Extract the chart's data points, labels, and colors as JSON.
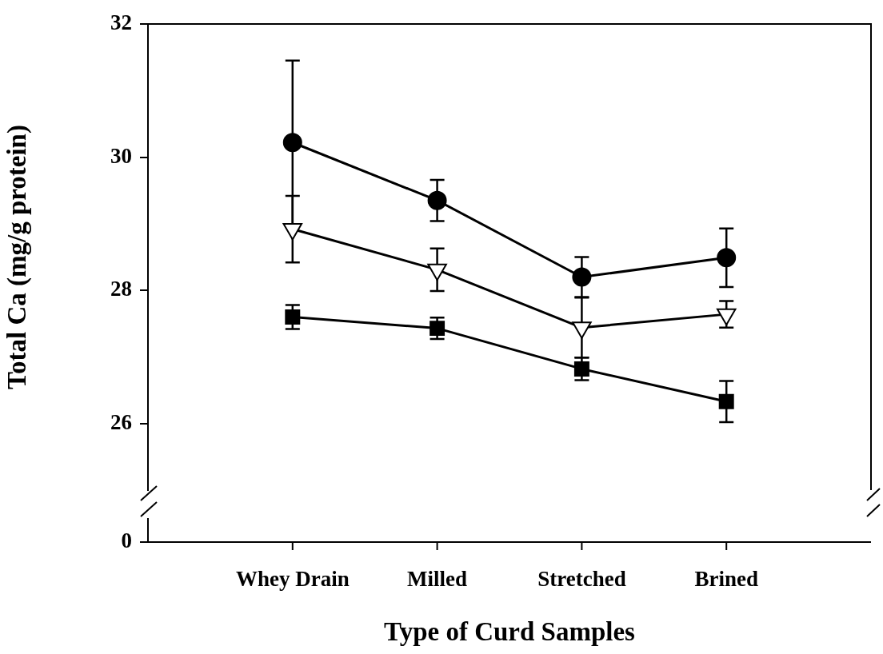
{
  "chart_data": {
    "type": "line",
    "xlabel": "Type of Curd Samples",
    "ylabel": "Total Ca (mg/g protein)",
    "categories": [
      "Whey Drain",
      "Milled",
      "Stretched",
      "Brined"
    ],
    "ylim": [
      25,
      32
    ],
    "yticks": [
      26,
      28,
      30,
      32
    ],
    "grid": false,
    "legend": false,
    "line_style": "solid",
    "annotations": [
      "0"
    ],
    "series": [
      {
        "color": "#000000",
        "marker": "circle",
        "values": [
          30.22,
          29.35,
          28.2,
          28.49
        ],
        "errors": [
          1.23,
          0.31,
          0.3,
          0.44
        ]
      },
      {
        "color": "#000000",
        "marker": "triangle",
        "values": [
          28.92,
          28.31,
          27.44,
          27.64
        ],
        "errors": [
          0.5,
          0.32,
          0.45,
          0.2
        ]
      },
      {
        "color": "#000000",
        "marker": "square",
        "values": [
          27.6,
          27.43,
          26.82,
          26.33
        ],
        "errors": [
          0.18,
          0.16,
          0.17,
          0.31
        ]
      }
    ]
  }
}
